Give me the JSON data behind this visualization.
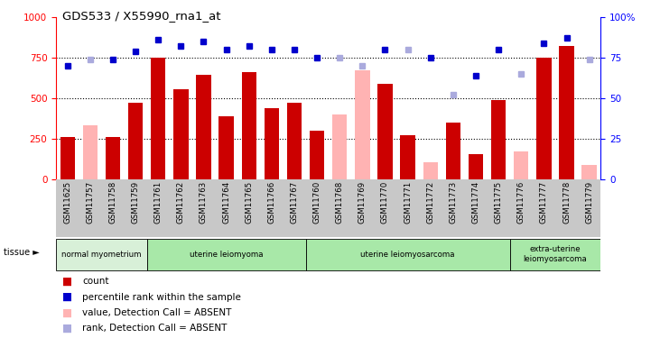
{
  "title": "GDS533 / X55990_rna1_at",
  "samples": [
    "GSM11625",
    "GSM11757",
    "GSM11758",
    "GSM11759",
    "GSM11761",
    "GSM11762",
    "GSM11763",
    "GSM11764",
    "GSM11765",
    "GSM11766",
    "GSM11767",
    "GSM11760",
    "GSM11768",
    "GSM11769",
    "GSM11770",
    "GSM11771",
    "GSM11772",
    "GSM11773",
    "GSM11774",
    "GSM11775",
    "GSM11776",
    "GSM11777",
    "GSM11778",
    "GSM11779"
  ],
  "count_values": [
    260,
    null,
    260,
    470,
    750,
    555,
    645,
    390,
    660,
    440,
    470,
    300,
    null,
    null,
    585,
    270,
    null,
    350,
    155,
    490,
    null,
    750,
    820,
    null
  ],
  "count_absent": [
    null,
    330,
    null,
    null,
    null,
    null,
    null,
    null,
    null,
    null,
    null,
    null,
    400,
    670,
    null,
    null,
    105,
    null,
    null,
    null,
    170,
    null,
    null,
    85
  ],
  "rank_values": [
    70,
    null,
    74,
    79,
    86,
    82,
    85,
    80,
    82,
    80,
    80,
    75,
    null,
    null,
    80,
    null,
    75,
    null,
    64,
    80,
    null,
    84,
    87,
    null
  ],
  "rank_absent": [
    null,
    74,
    null,
    null,
    null,
    null,
    null,
    null,
    null,
    null,
    null,
    null,
    75,
    70,
    null,
    80,
    null,
    52,
    null,
    null,
    65,
    null,
    null,
    74
  ],
  "ylim": [
    0,
    1000
  ],
  "y2lim": [
    0,
    100
  ],
  "yticks": [
    0,
    250,
    500,
    750,
    1000
  ],
  "y2ticks": [
    0,
    25,
    50,
    75,
    100
  ],
  "bar_color": "#cc0000",
  "bar_absent_color": "#ffb3b3",
  "rank_color": "#0000cc",
  "rank_absent_color": "#aaaadd",
  "tick_area_color": "#c8c8c8",
  "tissue_normal_color": "#d8f0d8",
  "tissue_other_color": "#a8e8a8",
  "tissues": [
    {
      "label": "normal myometrium",
      "start": 0,
      "end": 4
    },
    {
      "label": "uterine leiomyoma",
      "start": 4,
      "end": 11
    },
    {
      "label": "uterine leiomyosarcoma",
      "start": 11,
      "end": 20
    },
    {
      "label": "extra-uterine\nleiomyosarcoma",
      "start": 20,
      "end": 24
    }
  ]
}
